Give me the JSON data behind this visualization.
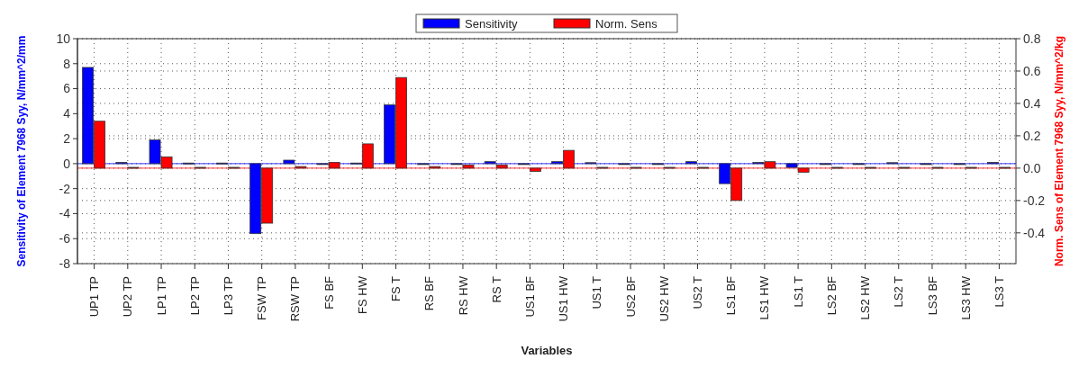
{
  "chart_data": {
    "type": "bar",
    "xlabel": "Variables",
    "ylabel": "Sensitivity of Element 7968 Syy, N/mm^2/mm",
    "y2label": "Norm. Sens of Element 7968 Syy, N/mm^2/kg",
    "categories": [
      "UP1 TP",
      "UP2 TP",
      "LP1 TP",
      "LP2 TP",
      "LP3 TP",
      "FSW TP",
      "RSW TP",
      "FS BF",
      "FS HW",
      "FS T",
      "RS BF",
      "RS HW",
      "RS T",
      "US1 BF",
      "US1 HW",
      "US1 T",
      "US2 BF",
      "US2 HW",
      "US2 T",
      "LS1 BF",
      "LS1 HW",
      "LS1 T",
      "LS2 BF",
      "LS2 HW",
      "LS2 T",
      "LS3 BF",
      "LS3 HW",
      "LS3 T"
    ],
    "series": [
      {
        "name": "Sensitivity",
        "color": "#0000ff",
        "values": [
          7.7,
          0.1,
          1.9,
          0.05,
          0.05,
          -5.6,
          0.28,
          0,
          0.05,
          4.7,
          0,
          0,
          0.16,
          0,
          0.16,
          0.08,
          0,
          0,
          0.16,
          -1.6,
          0.1,
          -0.3,
          0,
          0,
          0.08,
          0,
          0,
          0.1
        ]
      },
      {
        "name": "Norm. Sens",
        "color": "#ff0000",
        "axis": "y2",
        "values": [
          0.29,
          0.005,
          0.07,
          0.005,
          0.005,
          -0.34,
          0.01,
          0.036,
          0.15,
          0.56,
          0.01,
          0.02,
          0.02,
          -0.02,
          0.11,
          0.005,
          0.005,
          0.005,
          0.005,
          -0.2,
          0.04,
          -0.025,
          0.005,
          0.005,
          0.005,
          0.005,
          0.005,
          0.005
        ]
      }
    ],
    "ylim": [
      -8,
      10
    ],
    "yticks": [
      -8,
      -6,
      -4,
      -2,
      0,
      2,
      4,
      6,
      8,
      10
    ],
    "y2lim": [
      -0.59,
      0.8
    ],
    "y2ticks": [
      -0.4,
      -0.2,
      {
        "value": 0,
        "label": "0.0"
      },
      0.2,
      0.4,
      0.6,
      0.8
    ],
    "ref_lines": [
      {
        "axis": "y",
        "value": 0,
        "color": "#0000ff"
      },
      {
        "axis": "y2",
        "value": 0,
        "color": "#ff0000"
      }
    ],
    "grid": true,
    "legend": "top"
  }
}
